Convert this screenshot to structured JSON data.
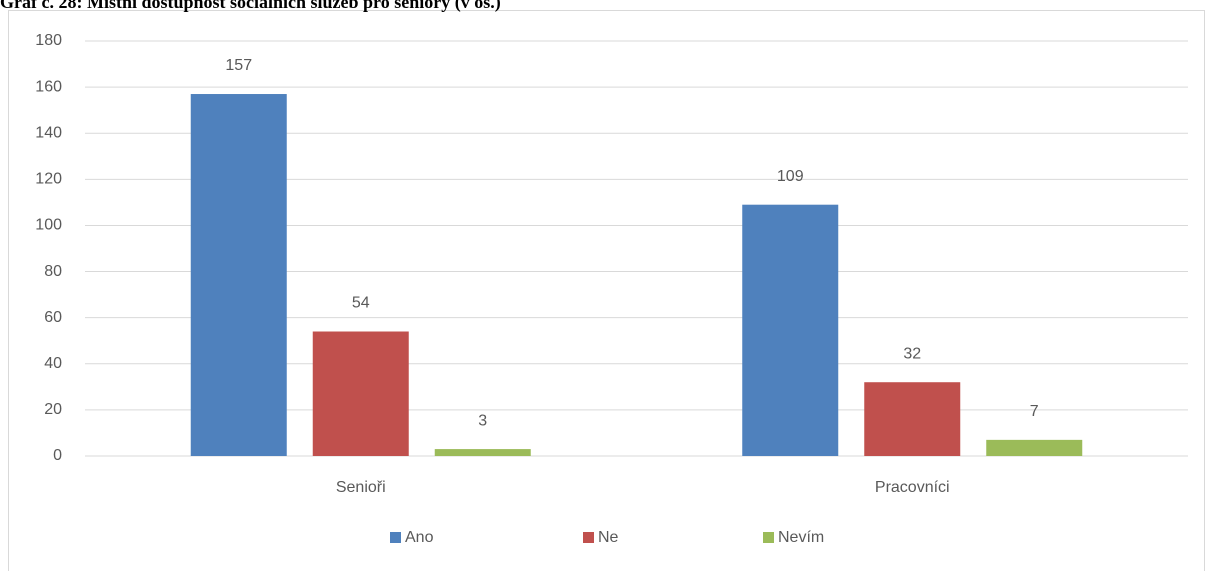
{
  "chart_data": {
    "type": "bar",
    "title": "Graf č. 28: Místní dostupnost sociálních služeb pro seniory (v os.)",
    "categories": [
      "Senioři",
      "Pracovníci"
    ],
    "series": [
      {
        "name": "Ano",
        "color": "#4f81bd",
        "values": [
          157,
          109
        ]
      },
      {
        "name": "Ne",
        "color": "#c0504d",
        "values": [
          54,
          32
        ]
      },
      {
        "name": "Nevím",
        "color": "#9bbb59",
        "values": [
          3,
          7
        ]
      }
    ],
    "ylim": [
      0,
      180
    ],
    "yticks": [
      0,
      20,
      40,
      60,
      80,
      100,
      120,
      140,
      160,
      180
    ],
    "grid": true,
    "legend": "bottom"
  }
}
